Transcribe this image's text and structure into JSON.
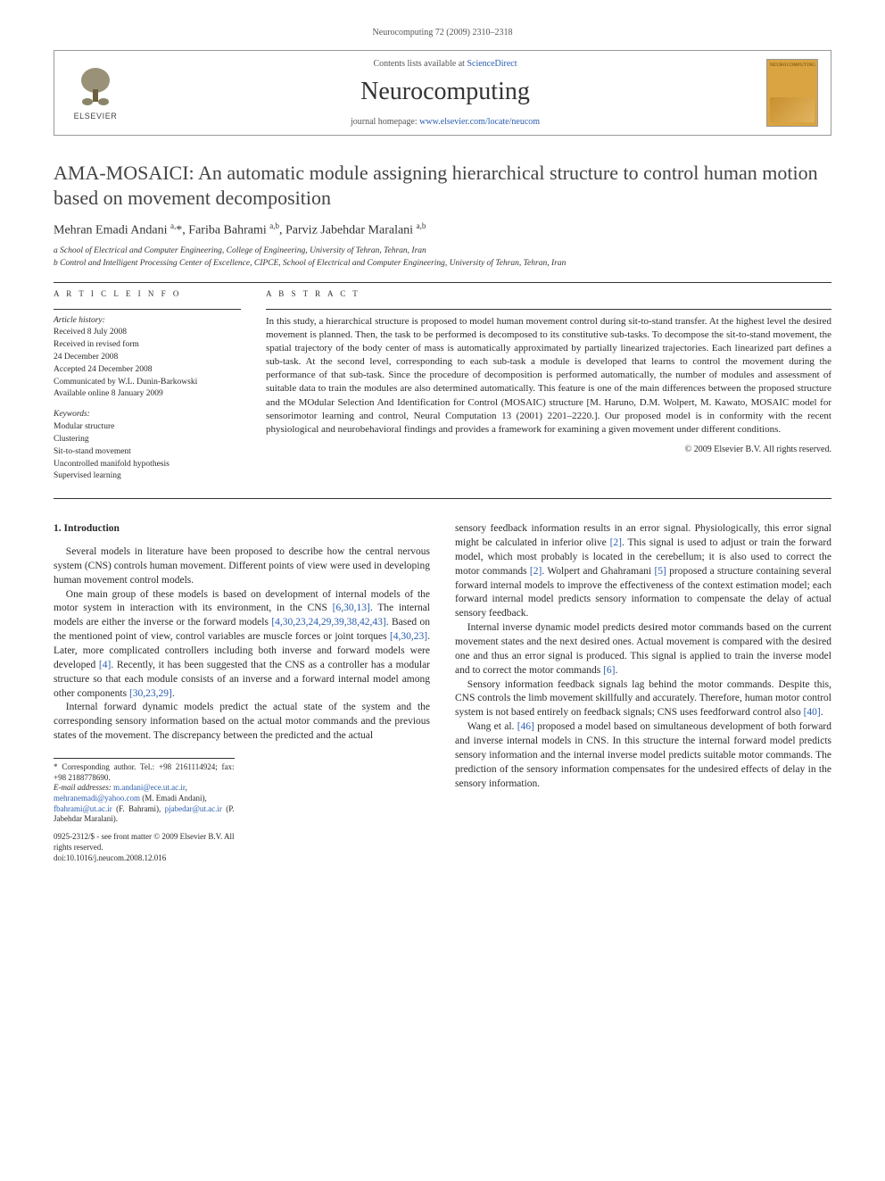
{
  "header": {
    "citation": "Neurocomputing 72 (2009) 2310–2318",
    "contents_prefix": "Contents lists available at ",
    "contents_link": "ScienceDirect",
    "journal": "Neurocomputing",
    "homepage_prefix": "journal homepage: ",
    "homepage_link": "www.elsevier.com/locate/neucom",
    "publisher": "ELSEVIER",
    "cover_label": "NEUROCOMPUTING"
  },
  "title": "AMA-MOSAICI: An automatic module assigning hierarchical structure to control human motion based on movement decomposition",
  "authors_html": "Mehran Emadi Andani <sup>a,</sup>*, Fariba Bahrami <sup>a,b</sup>, Parviz Jabehdar Maralani <sup>a,b</sup>",
  "affiliations": [
    "a School of Electrical and Computer Engineering, College of Engineering, University of Tehran, Tehran, Iran",
    "b Control and Intelligent Processing Center of Excellence, CIPCE, School of Electrical and Computer Engineering, University of Tehran, Tehran, Iran"
  ],
  "article_info": {
    "heading": "A R T I C L E  I N F O",
    "history_heading": "Article history:",
    "history": [
      "Received 8 July 2008",
      "Received in revised form",
      "24 December 2008",
      "Accepted 24 December 2008",
      "Communicated by W.L. Dunin-Barkowski",
      "Available online 8 January 2009"
    ],
    "keywords_heading": "Keywords:",
    "keywords": [
      "Modular structure",
      "Clustering",
      "Sit-to-stand movement",
      "Uncontrolled manifold hypothesis",
      "Supervised learning"
    ]
  },
  "abstract": {
    "heading": "A B S T R A C T",
    "text": "In this study, a hierarchical structure is proposed to model human movement control during sit-to-stand transfer. At the highest level the desired movement is planned. Then, the task to be performed is decomposed to its constitutive sub-tasks. To decompose the sit-to-stand movement, the spatial trajectory of the body center of mass is automatically approximated by partially linearized trajectories. Each linearized part defines a sub-task. At the second level, corresponding to each sub-task a module is developed that learns to control the movement during the performance of that sub-task. Since the procedure of decomposition is performed automatically, the number of modules and assessment of suitable data to train the modules are also determined automatically. This feature is one of the main differences between the proposed structure and the MOdular Selection And Identification for Control (MOSAIC) structure [M. Haruno, D.M. Wolpert, M. Kawato, MOSAIC model for sensorimotor learning and control, Neural Computation 13 (2001) 2201–2220.]. Our proposed model is in conformity with the recent physiological and neurobehavioral findings and provides a framework for examining a given movement under different conditions.",
    "copyright": "© 2009 Elsevier B.V. All rights reserved."
  },
  "sections": {
    "intro_heading": "1. Introduction",
    "p1": "Several models in literature have been proposed to describe how the central nervous system (CNS) controls human movement. Different points of view were used in developing human movement control models.",
    "p2a": "One main group of these models is based on development of internal models of the motor system in interaction with its environment, in the CNS ",
    "p2_ref1": "[6,30,13]",
    "p2b": ". The internal models are either the inverse or the forward models ",
    "p2_ref2": "[4,30,23,24,29,39,38,42,43]",
    "p2c": ". Based on the mentioned point of view, control variables are muscle forces or joint torques ",
    "p2_ref3": "[4,30,23]",
    "p2d": ". Later, more complicated controllers including both inverse and forward models were developed ",
    "p2_ref4": "[4]",
    "p2e": ". Recently, it has been suggested that the CNS as a controller has a modular structure so that each module consists of an inverse and a forward internal model among other components ",
    "p2_ref5": "[30,23,29]",
    "p2f": ".",
    "p3": "Internal forward dynamic models predict the actual state of the system and the corresponding sensory information based on the actual motor commands and the previous states of the movement. The discrepancy between the predicted and the actual",
    "p4a": "sensory feedback information results in an error signal. Physiologically, this error signal might be calculated in inferior olive ",
    "p4_ref1": "[2]",
    "p4b": ". This signal is used to adjust or train the forward model, which most probably is located in the cerebellum; it is also used to correct the motor commands ",
    "p4_ref2": "[2]",
    "p4c": ". Wolpert and Ghahramani ",
    "p4_ref3": "[5]",
    "p4d": " proposed a structure containing several forward internal models to improve the effectiveness of the context estimation model; each forward internal model predicts sensory information to compensate the delay of actual sensory feedback.",
    "p5a": "Internal inverse dynamic model predicts desired motor commands based on the current movement states and the next desired ones. Actual movement is compared with the desired one and thus an error signal is produced. This signal is applied to train the inverse model and to correct the motor commands ",
    "p5_ref1": "[6]",
    "p5b": ".",
    "p6a": "Sensory information feedback signals lag behind the motor commands. Despite this, CNS controls the limb movement skillfully and accurately. Therefore, human motor control system is not based entirely on feedback signals; CNS uses feedforward control also ",
    "p6_ref1": "[40]",
    "p6b": ".",
    "p7a": "Wang et al. ",
    "p7_ref1": "[46]",
    "p7b": " proposed a model based on simultaneous development of both forward and inverse internal models in CNS. In this structure the internal forward model predicts sensory information and the internal inverse model predicts suitable motor commands. The prediction of the sensory information compensates for the undesired effects of delay in the sensory information."
  },
  "footnotes": {
    "corresponding": "* Corresponding author. Tel.: +98 2161114924; fax: +98 2188778690.",
    "emails_label": "E-mail addresses: ",
    "email1": "m.andani@ece.ut.ac.ir",
    "email1_sep": ", ",
    "email2": "mehranemadi@yahoo.com",
    "email2_name": " (M. Emadi Andani),",
    "email3": "fbahrami@ut.ac.ir",
    "email3_name": " (F. Bahrami), ",
    "email4": "pjabedar@ut.ac.ir",
    "email4_name": " (P. Jabehdar Maralani)."
  },
  "bottom": {
    "issn": "0925-2312/$ - see front matter © 2009 Elsevier B.V. All rights reserved.",
    "doi": "doi:10.1016/j.neucom.2008.12.016"
  }
}
